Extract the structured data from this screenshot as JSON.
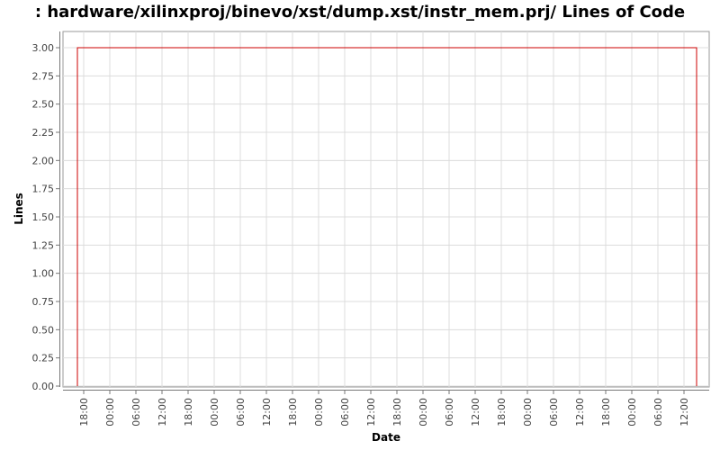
{
  "chart_data": {
    "type": "line",
    "title": ": hardware/xilinxproj/binevo/xst/dump.xst/instr_mem.prj/ Lines of Code",
    "xlabel": "Date",
    "ylabel": "Lines",
    "ylim": [
      0,
      3.0
    ],
    "y_ticks": [
      "0.00",
      "0.25",
      "0.50",
      "0.75",
      "1.00",
      "1.25",
      "1.50",
      "1.75",
      "2.00",
      "2.25",
      "2.50",
      "2.75",
      "3.00"
    ],
    "x_ticks": [
      "18:00",
      "00:00",
      "06:00",
      "12:00",
      "18:00",
      "00:00",
      "06:00",
      "12:00",
      "18:00",
      "00:00",
      "06:00",
      "12:00",
      "18:00",
      "00:00",
      "06:00",
      "12:00",
      "18:00",
      "00:00",
      "06:00",
      "12:00",
      "18:00",
      "00:00",
      "06:00",
      "12:00"
    ],
    "grid": true,
    "legend": "none",
    "series": [
      {
        "color": "#cc0000",
        "points": [
          {
            "x": "18:00",
            "y": 0
          },
          {
            "x": "18:00",
            "y": 3
          },
          {
            "x": "12:00",
            "y": 3
          },
          {
            "x": "12:00",
            "y": 0
          }
        ]
      }
    ]
  }
}
